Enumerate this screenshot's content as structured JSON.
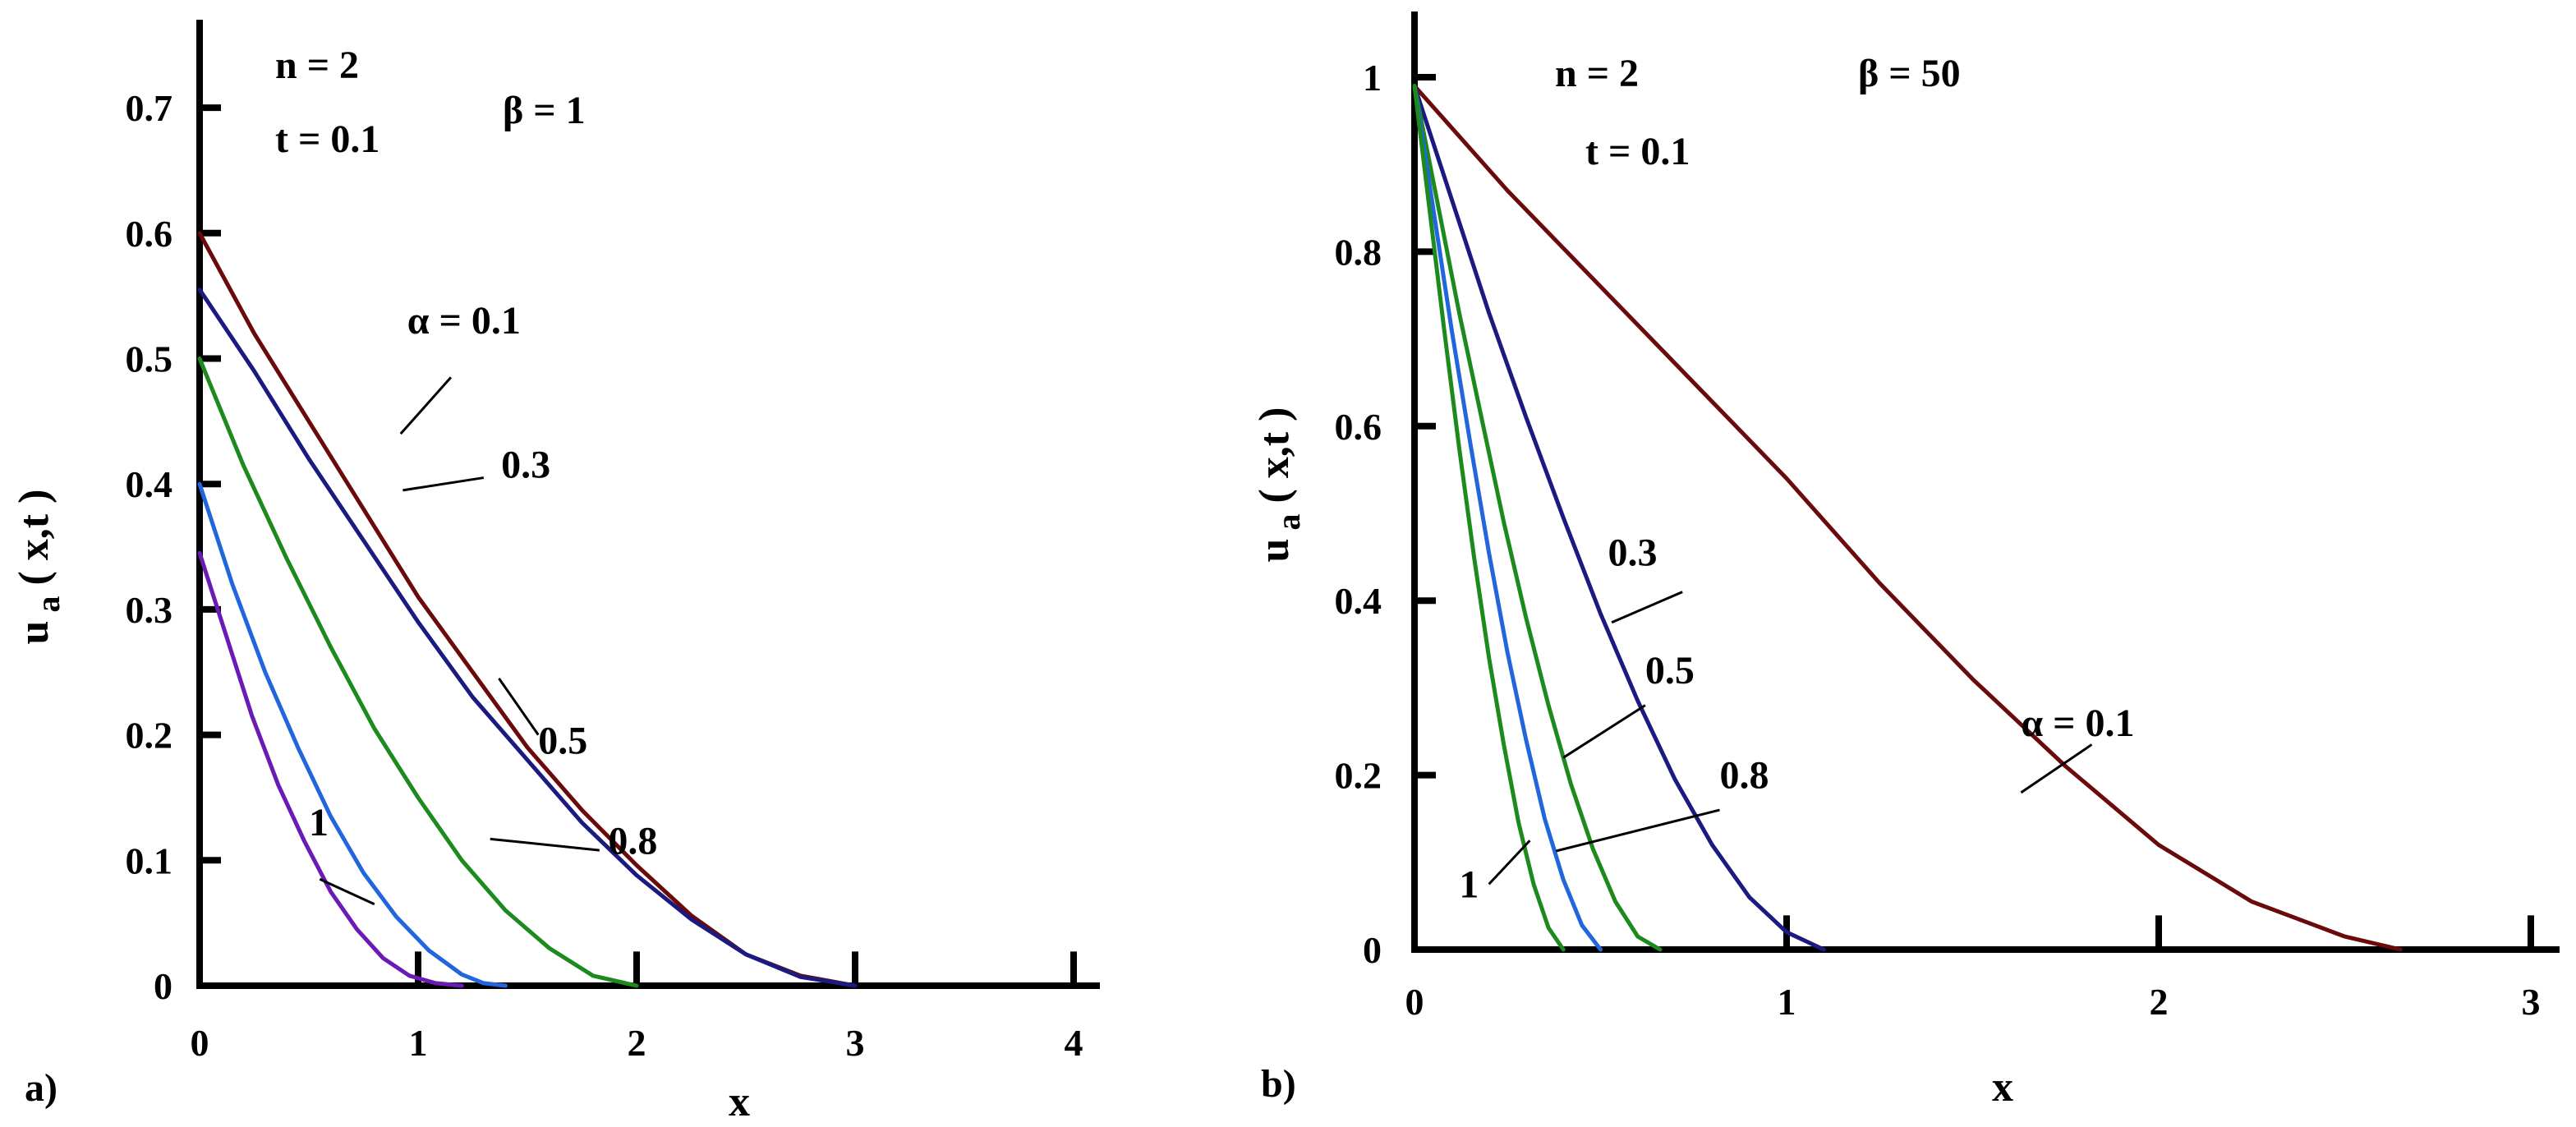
{
  "chart_data": [
    {
      "panel": "a)",
      "type": "line",
      "xlabel": "x",
      "ylabel_main": "u",
      "ylabel_sub": "a",
      "ylabel_rest": " ( x,t )",
      "xlim": [
        0,
        4.2
      ],
      "ylim": [
        0,
        0.76
      ],
      "xticks": [
        0,
        1,
        2,
        3,
        4
      ],
      "xtick_labels": [
        "0",
        "1",
        "2",
        "3",
        "4"
      ],
      "yticks": [
        0,
        0.1,
        0.2,
        0.3,
        0.4,
        0.5,
        0.6,
        0.7
      ],
      "ytick_labels": [
        "0",
        "0.1",
        "0.2",
        "0.3",
        "0.4",
        "0.5",
        "0.6",
        "0.7"
      ],
      "annotations": [
        "n = 2",
        "t = 0.1",
        "β = 1"
      ],
      "series": [
        {
          "name": "α = 0.1",
          "color": "#6b0a0a",
          "x": [
            0,
            0.25,
            0.5,
            0.75,
            1.0,
            1.25,
            1.5,
            1.75,
            2.0,
            2.25,
            2.5,
            2.75,
            3.0
          ],
          "y": [
            0.6,
            0.52,
            0.45,
            0.38,
            0.31,
            0.25,
            0.19,
            0.14,
            0.096,
            0.056,
            0.025,
            0.008,
            0.0
          ]
        },
        {
          "name": "0.3",
          "color": "#1a1a80",
          "x": [
            0,
            0.25,
            0.5,
            0.75,
            1.0,
            1.25,
            1.5,
            1.75,
            2.0,
            2.25,
            2.5,
            2.75,
            3.0
          ],
          "y": [
            0.555,
            0.49,
            0.42,
            0.355,
            0.29,
            0.23,
            0.18,
            0.13,
            0.088,
            0.053,
            0.025,
            0.007,
            0.0
          ]
        },
        {
          "name": "0.5",
          "color": "#1c8a1c",
          "x": [
            0,
            0.2,
            0.4,
            0.6,
            0.8,
            1.0,
            1.2,
            1.4,
            1.6,
            1.8,
            2.0
          ],
          "y": [
            0.5,
            0.415,
            0.34,
            0.27,
            0.205,
            0.15,
            0.1,
            0.06,
            0.03,
            0.008,
            0.0
          ]
        },
        {
          "name": "0.8",
          "color": "#2266dd",
          "x": [
            0,
            0.15,
            0.3,
            0.45,
            0.6,
            0.75,
            0.9,
            1.05,
            1.2,
            1.3,
            1.4
          ],
          "y": [
            0.4,
            0.32,
            0.25,
            0.19,
            0.135,
            0.09,
            0.055,
            0.028,
            0.009,
            0.002,
            0.0
          ]
        },
        {
          "name": "1",
          "color": "#6a1ab5",
          "x": [
            0,
            0.12,
            0.24,
            0.36,
            0.48,
            0.6,
            0.72,
            0.84,
            0.96,
            1.08,
            1.2
          ],
          "y": [
            0.345,
            0.28,
            0.215,
            0.16,
            0.115,
            0.075,
            0.045,
            0.022,
            0.008,
            0.002,
            0.0
          ]
        }
      ],
      "curve_labels": [
        {
          "text": "α = 0.1",
          "label_x": 0.95,
          "label_y": 0.52,
          "line_x1": 1.15,
          "line_y1": 0.485,
          "line_x2": 0.92,
          "line_y2": 0.44
        },
        {
          "text": "0.3",
          "label_x": 1.38,
          "label_y": 0.405,
          "line_x1": 1.3,
          "line_y1": 0.405,
          "line_x2": 0.93,
          "line_y2": 0.395
        },
        {
          "text": "0.5",
          "label_x": 1.55,
          "label_y": 0.185,
          "line_x1": 1.55,
          "line_y1": 0.2,
          "line_x2": 1.37,
          "line_y2": 0.245
        },
        {
          "text": "0.8",
          "label_x": 1.87,
          "label_y": 0.105,
          "line_x1": 1.83,
          "line_y1": 0.108,
          "line_x2": 1.33,
          "line_y2": 0.117
        },
        {
          "text": "1",
          "label_x": 0.5,
          "label_y": 0.12,
          "line_x1": 0.55,
          "line_y1": 0.085,
          "line_x2": 0.8,
          "line_y2": 0.065
        }
      ]
    },
    {
      "panel": "b)",
      "type": "line",
      "xlabel": "x",
      "ylabel_main": "u",
      "ylabel_sub": "a",
      "ylabel_rest": " ( x,t )",
      "xlim": [
        0,
        3.1
      ],
      "ylim": [
        0,
        1.06
      ],
      "xticks": [
        0,
        1,
        2,
        3
      ],
      "xtick_labels": [
        "0",
        "1",
        "2",
        "3"
      ],
      "yticks": [
        0,
        0.2,
        0.4,
        0.6,
        0.8,
        1
      ],
      "ytick_labels": [
        "0",
        "0.2",
        "0.4",
        "0.6",
        "0.8",
        "1"
      ],
      "annotations": [
        "n = 2",
        "t = 0.1",
        "β = 50"
      ],
      "series": [
        {
          "name": "α = 0.1",
          "color": "#6b0a0a",
          "x": [
            0,
            0.25,
            0.5,
            0.75,
            1.0,
            1.25,
            1.5,
            1.75,
            2.0,
            2.25,
            2.5,
            2.65
          ],
          "y": [
            0.99,
            0.87,
            0.76,
            0.65,
            0.54,
            0.42,
            0.31,
            0.21,
            0.12,
            0.055,
            0.015,
            0.0
          ]
        },
        {
          "name": "0.3",
          "color": "#1a1a80",
          "x": [
            0,
            0.1,
            0.2,
            0.3,
            0.4,
            0.5,
            0.6,
            0.7,
            0.8,
            0.9,
            1.0,
            1.1
          ],
          "y": [
            0.99,
            0.86,
            0.73,
            0.61,
            0.495,
            0.385,
            0.285,
            0.195,
            0.12,
            0.06,
            0.02,
            0.0
          ]
        },
        {
          "name": "0.5",
          "color": "#1c8a1c",
          "x": [
            0,
            0.06,
            0.12,
            0.18,
            0.24,
            0.3,
            0.36,
            0.42,
            0.48,
            0.54,
            0.6,
            0.66
          ],
          "y": [
            0.99,
            0.86,
            0.73,
            0.61,
            0.49,
            0.38,
            0.28,
            0.19,
            0.115,
            0.055,
            0.015,
            0.0
          ]
        },
        {
          "name": "0.8",
          "color": "#2266dd",
          "x": [
            0,
            0.05,
            0.1,
            0.15,
            0.2,
            0.25,
            0.3,
            0.35,
            0.4,
            0.45,
            0.5
          ],
          "y": [
            0.99,
            0.85,
            0.71,
            0.58,
            0.455,
            0.34,
            0.24,
            0.15,
            0.08,
            0.028,
            0.0
          ]
        },
        {
          "name": "1",
          "color": "#1c8a1c",
          "x": [
            0,
            0.04,
            0.08,
            0.12,
            0.16,
            0.2,
            0.24,
            0.28,
            0.32,
            0.36,
            0.4
          ],
          "y": [
            0.99,
            0.85,
            0.71,
            0.575,
            0.45,
            0.335,
            0.235,
            0.145,
            0.075,
            0.025,
            0.0
          ]
        }
      ],
      "curve_labels": [
        {
          "text": "0.3",
          "label_x": 0.52,
          "label_y": 0.44,
          "line_x1": 0.72,
          "line_y1": 0.41,
          "line_x2": 0.53,
          "line_y2": 0.375
        },
        {
          "text": "0.5",
          "label_x": 0.62,
          "label_y": 0.305,
          "line_x1": 0.62,
          "line_y1": 0.28,
          "line_x2": 0.4,
          "line_y2": 0.22
        },
        {
          "text": "0.8",
          "label_x": 0.82,
          "label_y": 0.185,
          "line_x1": 0.82,
          "line_y1": 0.16,
          "line_x2": 0.38,
          "line_y2": 0.113
        },
        {
          "text": "1",
          "label_x": 0.12,
          "label_y": 0.06,
          "line_x1": 0.2,
          "line_y1": 0.075,
          "line_x2": 0.31,
          "line_y2": 0.125
        },
        {
          "text": "α = 0.1",
          "label_x": 1.63,
          "label_y": 0.245,
          "line_x1": 1.82,
          "line_y1": 0.235,
          "line_x2": 1.63,
          "line_y2": 0.18
        }
      ]
    }
  ]
}
